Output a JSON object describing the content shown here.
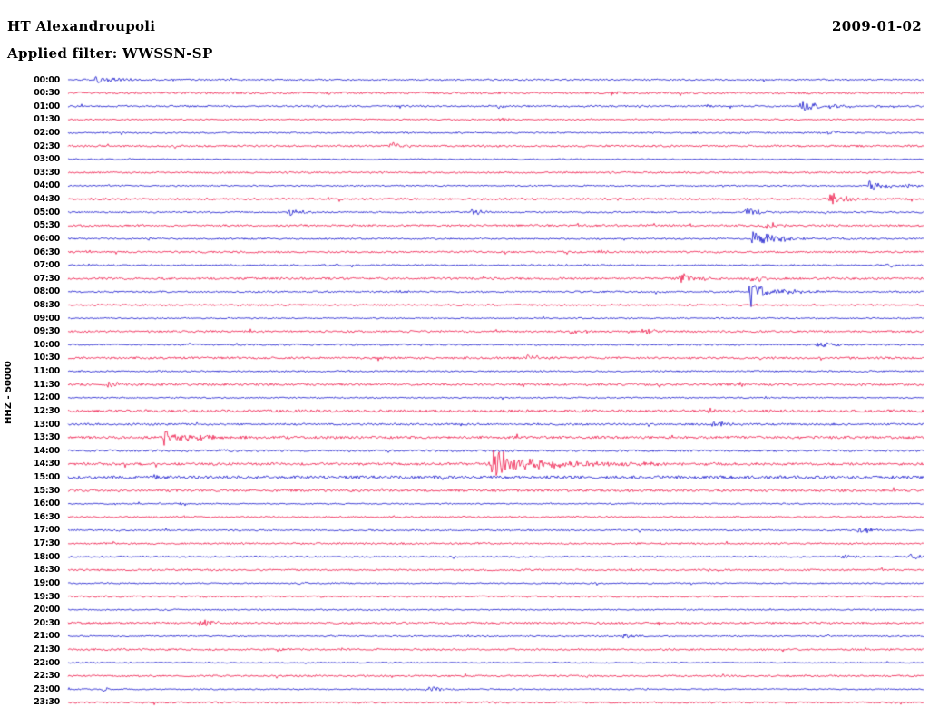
{
  "header": {
    "station": "HT Alexandroupoli",
    "date": "2009-01-02",
    "filter_label": "Applied filter: WWSSN-SP"
  },
  "axis": {
    "channel_label": "HHZ - 50000",
    "row_labels": [
      "00:00",
      "00:30",
      "01:00",
      "01:30",
      "02:00",
      "02:30",
      "03:00",
      "03:30",
      "04:00",
      "04:30",
      "05:00",
      "05:30",
      "06:00",
      "06:30",
      "07:00",
      "07:30",
      "08:00",
      "08:30",
      "09:00",
      "09:30",
      "10:00",
      "10:30",
      "11:00",
      "11:30",
      "12:00",
      "12:30",
      "13:00",
      "13:30",
      "14:00",
      "14:30",
      "15:00",
      "15:30",
      "16:00",
      "16:30",
      "17:00",
      "17:30",
      "18:00",
      "18:30",
      "19:00",
      "19:30",
      "20:00",
      "20:30",
      "21:00",
      "21:30",
      "22:00",
      "22:30",
      "23:00",
      "23:30"
    ]
  },
  "chart_data": {
    "type": "line",
    "subtype": "helicorder-seismogram",
    "title": "HT Alexandroupoli HHZ helicorder 2009-01-02, WWSSN-SP filter",
    "minutes_per_row": 30,
    "amplitude_scale": "50000",
    "colors": {
      "even_row": "#1212cc",
      "odd_row": "#ee1144"
    },
    "event_format": [
      "position_fraction_of_row",
      "amplitude_px",
      "decay_fraction_of_row"
    ],
    "rows": [
      {
        "t": "00:00",
        "n": 0.8,
        "e": [
          [
            0.033,
            6,
            0.01
          ],
          [
            0.052,
            2.5,
            0.02
          ]
        ]
      },
      {
        "t": "00:30",
        "n": 1.0,
        "e": [
          [
            0.3,
            2,
            0.008
          ],
          [
            0.635,
            3,
            0.01
          ],
          [
            0.865,
            2.5,
            0.008
          ]
        ]
      },
      {
        "t": "01:00",
        "n": 0.9,
        "e": [
          [
            0.5,
            3,
            0.008
          ],
          [
            0.745,
            2.5,
            0.008
          ],
          [
            0.857,
            9,
            0.012
          ],
          [
            0.872,
            3,
            0.04
          ]
        ]
      },
      {
        "t": "01:30",
        "n": 0.7,
        "e": [
          [
            0.505,
            3,
            0.01
          ]
        ]
      },
      {
        "t": "02:00",
        "n": 0.8,
        "e": [
          [
            0.887,
            4.5,
            0.012
          ]
        ]
      },
      {
        "t": "02:30",
        "n": 1.0,
        "e": [
          [
            0.378,
            4.5,
            0.015
          ]
        ]
      },
      {
        "t": "03:00",
        "n": 0.6,
        "e": []
      },
      {
        "t": "03:30",
        "n": 0.9,
        "e": []
      },
      {
        "t": "04:00",
        "n": 0.7,
        "e": [
          [
            0.6,
            1.5,
            0.008
          ],
          [
            0.937,
            8,
            0.015
          ],
          [
            0.952,
            3,
            0.04
          ]
        ]
      },
      {
        "t": "04:30",
        "n": 1.0,
        "e": [
          [
            0.303,
            2,
            0.008
          ],
          [
            0.892,
            7,
            0.02
          ]
        ]
      },
      {
        "t": "05:00",
        "n": 0.8,
        "e": [
          [
            0.257,
            4.5,
            0.012
          ],
          [
            0.472,
            4,
            0.012
          ],
          [
            0.793,
            5,
            0.015
          ]
        ]
      },
      {
        "t": "05:30",
        "n": 1.0,
        "e": [
          [
            0.333,
            1.5,
            0.008
          ],
          [
            0.814,
            5,
            0.015
          ]
        ]
      },
      {
        "t": "06:00",
        "n": 0.8,
        "e": [
          [
            0.8,
            10,
            0.012
          ],
          [
            0.816,
            4,
            0.05
          ]
        ]
      },
      {
        "t": "06:30",
        "n": 1.0,
        "e": [
          [
            0.022,
            2.5,
            0.008
          ],
          [
            0.617,
            2.5,
            0.01
          ]
        ]
      },
      {
        "t": "07:00",
        "n": 0.8,
        "e": [
          [
            0.3,
            2,
            0.008
          ],
          [
            0.957,
            3.5,
            0.012
          ]
        ]
      },
      {
        "t": "07:30",
        "n": 1.1,
        "e": [
          [
            0.715,
            6,
            0.02
          ],
          [
            0.8,
            4,
            0.015
          ]
        ]
      },
      {
        "t": "08:00",
        "n": 0.9,
        "e": [
          [
            0.383,
            2,
            0.008
          ],
          [
            0.797,
            26,
            0.006
          ],
          [
            0.804,
            6,
            0.035
          ]
        ]
      },
      {
        "t": "08:30",
        "n": 0.9,
        "e": [
          [
            0.8,
            2,
            0.01
          ]
        ]
      },
      {
        "t": "09:00",
        "n": 0.7,
        "e": []
      },
      {
        "t": "09:30",
        "n": 1.0,
        "e": [
          [
            0.587,
            3,
            0.012
          ],
          [
            0.672,
            3.5,
            0.012
          ]
        ]
      },
      {
        "t": "10:00",
        "n": 0.8,
        "e": [
          [
            0.877,
            4.5,
            0.015
          ]
        ]
      },
      {
        "t": "10:30",
        "n": 1.1,
        "e": [
          [
            0.537,
            3.5,
            0.015
          ]
        ]
      },
      {
        "t": "11:00",
        "n": 0.8,
        "e": []
      },
      {
        "t": "11:30",
        "n": 1.1,
        "e": [
          [
            0.046,
            3.5,
            0.015
          ]
        ]
      },
      {
        "t": "12:00",
        "n": 0.7,
        "e": []
      },
      {
        "t": "12:30",
        "n": 1.3,
        "e": [
          [
            0.747,
            3,
            0.01
          ]
        ]
      },
      {
        "t": "13:00",
        "n": 1.0,
        "e": [
          [
            0.755,
            5,
            0.015
          ]
        ]
      },
      {
        "t": "13:30",
        "n": 1.3,
        "e": [
          [
            0.112,
            13,
            0.008
          ],
          [
            0.12,
            5,
            0.05
          ]
        ]
      },
      {
        "t": "14:00",
        "n": 1.0,
        "e": [
          [
            0.177,
            3,
            0.01
          ]
        ]
      },
      {
        "t": "14:30",
        "n": 1.3,
        "e": [
          [
            0.496,
            24,
            0.012
          ],
          [
            0.505,
            8,
            0.09
          ]
        ]
      },
      {
        "t": "15:00",
        "n": 1.5,
        "e": [
          [
            0.1,
            2.5,
            0.008
          ]
        ]
      },
      {
        "t": "15:30",
        "n": 1.2,
        "e": []
      },
      {
        "t": "16:00",
        "n": 0.7,
        "e": [
          [
            0.13,
            1.5,
            0.008
          ]
        ]
      },
      {
        "t": "16:30",
        "n": 0.8,
        "e": [
          [
            0.135,
            2,
            0.008
          ]
        ]
      },
      {
        "t": "17:00",
        "n": 0.8,
        "e": [
          [
            0.925,
            5,
            0.015
          ]
        ]
      },
      {
        "t": "17:30",
        "n": 0.9,
        "e": []
      },
      {
        "t": "18:00",
        "n": 0.8,
        "e": [
          [
            0.905,
            3,
            0.01
          ],
          [
            0.985,
            3.5,
            0.012
          ]
        ]
      },
      {
        "t": "18:30",
        "n": 0.9,
        "e": []
      },
      {
        "t": "19:00",
        "n": 0.7,
        "e": [
          [
            0.27,
            2,
            0.008
          ]
        ]
      },
      {
        "t": "19:30",
        "n": 0.9,
        "e": []
      },
      {
        "t": "20:00",
        "n": 0.7,
        "e": []
      },
      {
        "t": "20:30",
        "n": 1.0,
        "e": [
          [
            0.155,
            4.5,
            0.015
          ]
        ]
      },
      {
        "t": "21:00",
        "n": 0.7,
        "e": [
          [
            0.65,
            3,
            0.012
          ]
        ]
      },
      {
        "t": "21:30",
        "n": 0.9,
        "e": [
          [
            0.245,
            2,
            0.008
          ]
        ]
      },
      {
        "t": "22:00",
        "n": 0.6,
        "e": []
      },
      {
        "t": "22:30",
        "n": 0.9,
        "e": []
      },
      {
        "t": "23:00",
        "n": 0.7,
        "e": [
          [
            0.04,
            2.5,
            0.01
          ],
          [
            0.42,
            4.5,
            0.015
          ]
        ]
      },
      {
        "t": "23:30",
        "n": 0.9,
        "e": []
      }
    ]
  }
}
